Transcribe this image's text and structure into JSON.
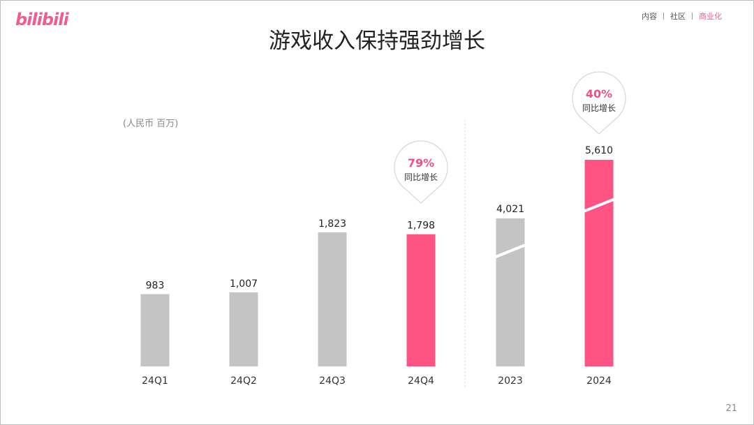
{
  "header": {
    "logo": "bilibili",
    "nav": [
      {
        "label": "内容",
        "active": false
      },
      {
        "label": "社区",
        "active": false
      },
      {
        "label": "商业化",
        "active": true
      }
    ]
  },
  "title": "游戏收入保持强劲增长",
  "unit": "(人民币 百万)",
  "page_number": "21",
  "colors": {
    "gray": "#c4c4c4",
    "pink": "#ff5384",
    "badge_text": "#f04f88"
  },
  "chart_data": {
    "type": "bar",
    "title": "游戏收入保持强劲增长",
    "ylabel": "(人民币 百万)",
    "groups": [
      {
        "name": "quarterly",
        "categories": [
          "24Q1",
          "24Q2",
          "24Q3",
          "24Q4"
        ],
        "values": [
          983,
          1007,
          1823,
          1798
        ],
        "value_labels": [
          "983",
          "1,007",
          "1,823",
          "1,798"
        ],
        "highlight": "24Q4"
      },
      {
        "name": "annual",
        "categories": [
          "2023",
          "2024"
        ],
        "values": [
          4021,
          5610
        ],
        "value_labels": [
          "4,021",
          "5,610"
        ],
        "highlight": "2024",
        "axis_break": true
      }
    ],
    "annotations": [
      {
        "category": "24Q4",
        "value": "79%",
        "text": "同比增长"
      },
      {
        "category": "2024",
        "value": "40%",
        "text": "同比增长"
      }
    ]
  }
}
